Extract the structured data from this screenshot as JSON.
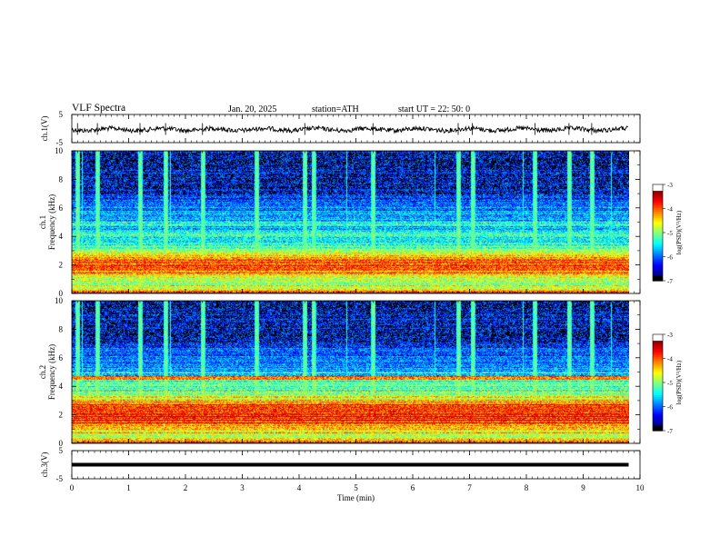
{
  "header": {
    "title": "VLF  Spectra",
    "date": "Jan. 20, 2025",
    "station": "station=ATH",
    "start": "start  UT  =    22: 50: 0"
  },
  "chart_data": [
    {
      "type": "line",
      "panel": "ch1-waveform",
      "ylabel": "ch.1(V)",
      "ylim": [
        -5,
        5
      ],
      "yticks": [
        "5",
        "-5"
      ],
      "xlim": [
        0,
        10
      ],
      "series": [
        {
          "values_description_free": true,
          "baseline": 0,
          "noise_amplitude": 0.8
        }
      ]
    },
    {
      "type": "heatmap",
      "panel": "ch1-spectrogram",
      "ylabel": "ch.1\nFrequency (kHz)",
      "ylim": [
        0,
        10
      ],
      "yticks": [
        "0",
        "2",
        "4",
        "6",
        "8",
        "10"
      ],
      "xlim": [
        0,
        9.8
      ],
      "colorbar": {
        "label": "log(PSD)(V²/Hz)",
        "range": [
          -7,
          -3
        ],
        "ticks": [
          "-3",
          "-4",
          "-5",
          "-6",
          "-7"
        ]
      },
      "bursts_min": [
        0.1,
        0.45,
        1.2,
        1.65,
        2.3,
        3.25,
        4.1,
        4.25,
        5.3,
        6.8,
        7.05,
        8.15,
        8.75,
        9.15
      ],
      "band_center_khz": 2.1
    },
    {
      "type": "heatmap",
      "panel": "ch2-spectrogram",
      "ylabel": "ch.2\nFrequency (kHz)",
      "ylim": [
        0,
        10
      ],
      "yticks": [
        "0",
        "2",
        "4",
        "6",
        "8",
        "10"
      ],
      "xlim": [
        0,
        9.8
      ],
      "colorbar": {
        "label": "log(PSD)(V²/Hz)",
        "range": [
          -7,
          -3
        ],
        "ticks": [
          "-3",
          "-4",
          "-5",
          "-6",
          "-7"
        ]
      },
      "bursts_min": [
        0.1,
        0.45,
        1.2,
        1.65,
        2.3,
        3.25,
        4.1,
        4.25,
        5.3,
        6.8,
        7.05,
        8.15,
        8.75,
        9.15
      ],
      "band_center_khz": 2.1
    },
    {
      "type": "line",
      "panel": "ch3-waveform",
      "ylabel": "ch.3(V)",
      "ylim": [
        -5,
        5
      ],
      "yticks": [
        "5",
        "-5"
      ],
      "xlim": [
        0,
        10
      ],
      "series": [
        {
          "constant_value": 0
        }
      ]
    }
  ],
  "xaxis": {
    "label": "Time  (min)",
    "ticks": [
      "0",
      "1",
      "2",
      "3",
      "4",
      "5",
      "6",
      "7",
      "8",
      "9",
      "10"
    ]
  }
}
